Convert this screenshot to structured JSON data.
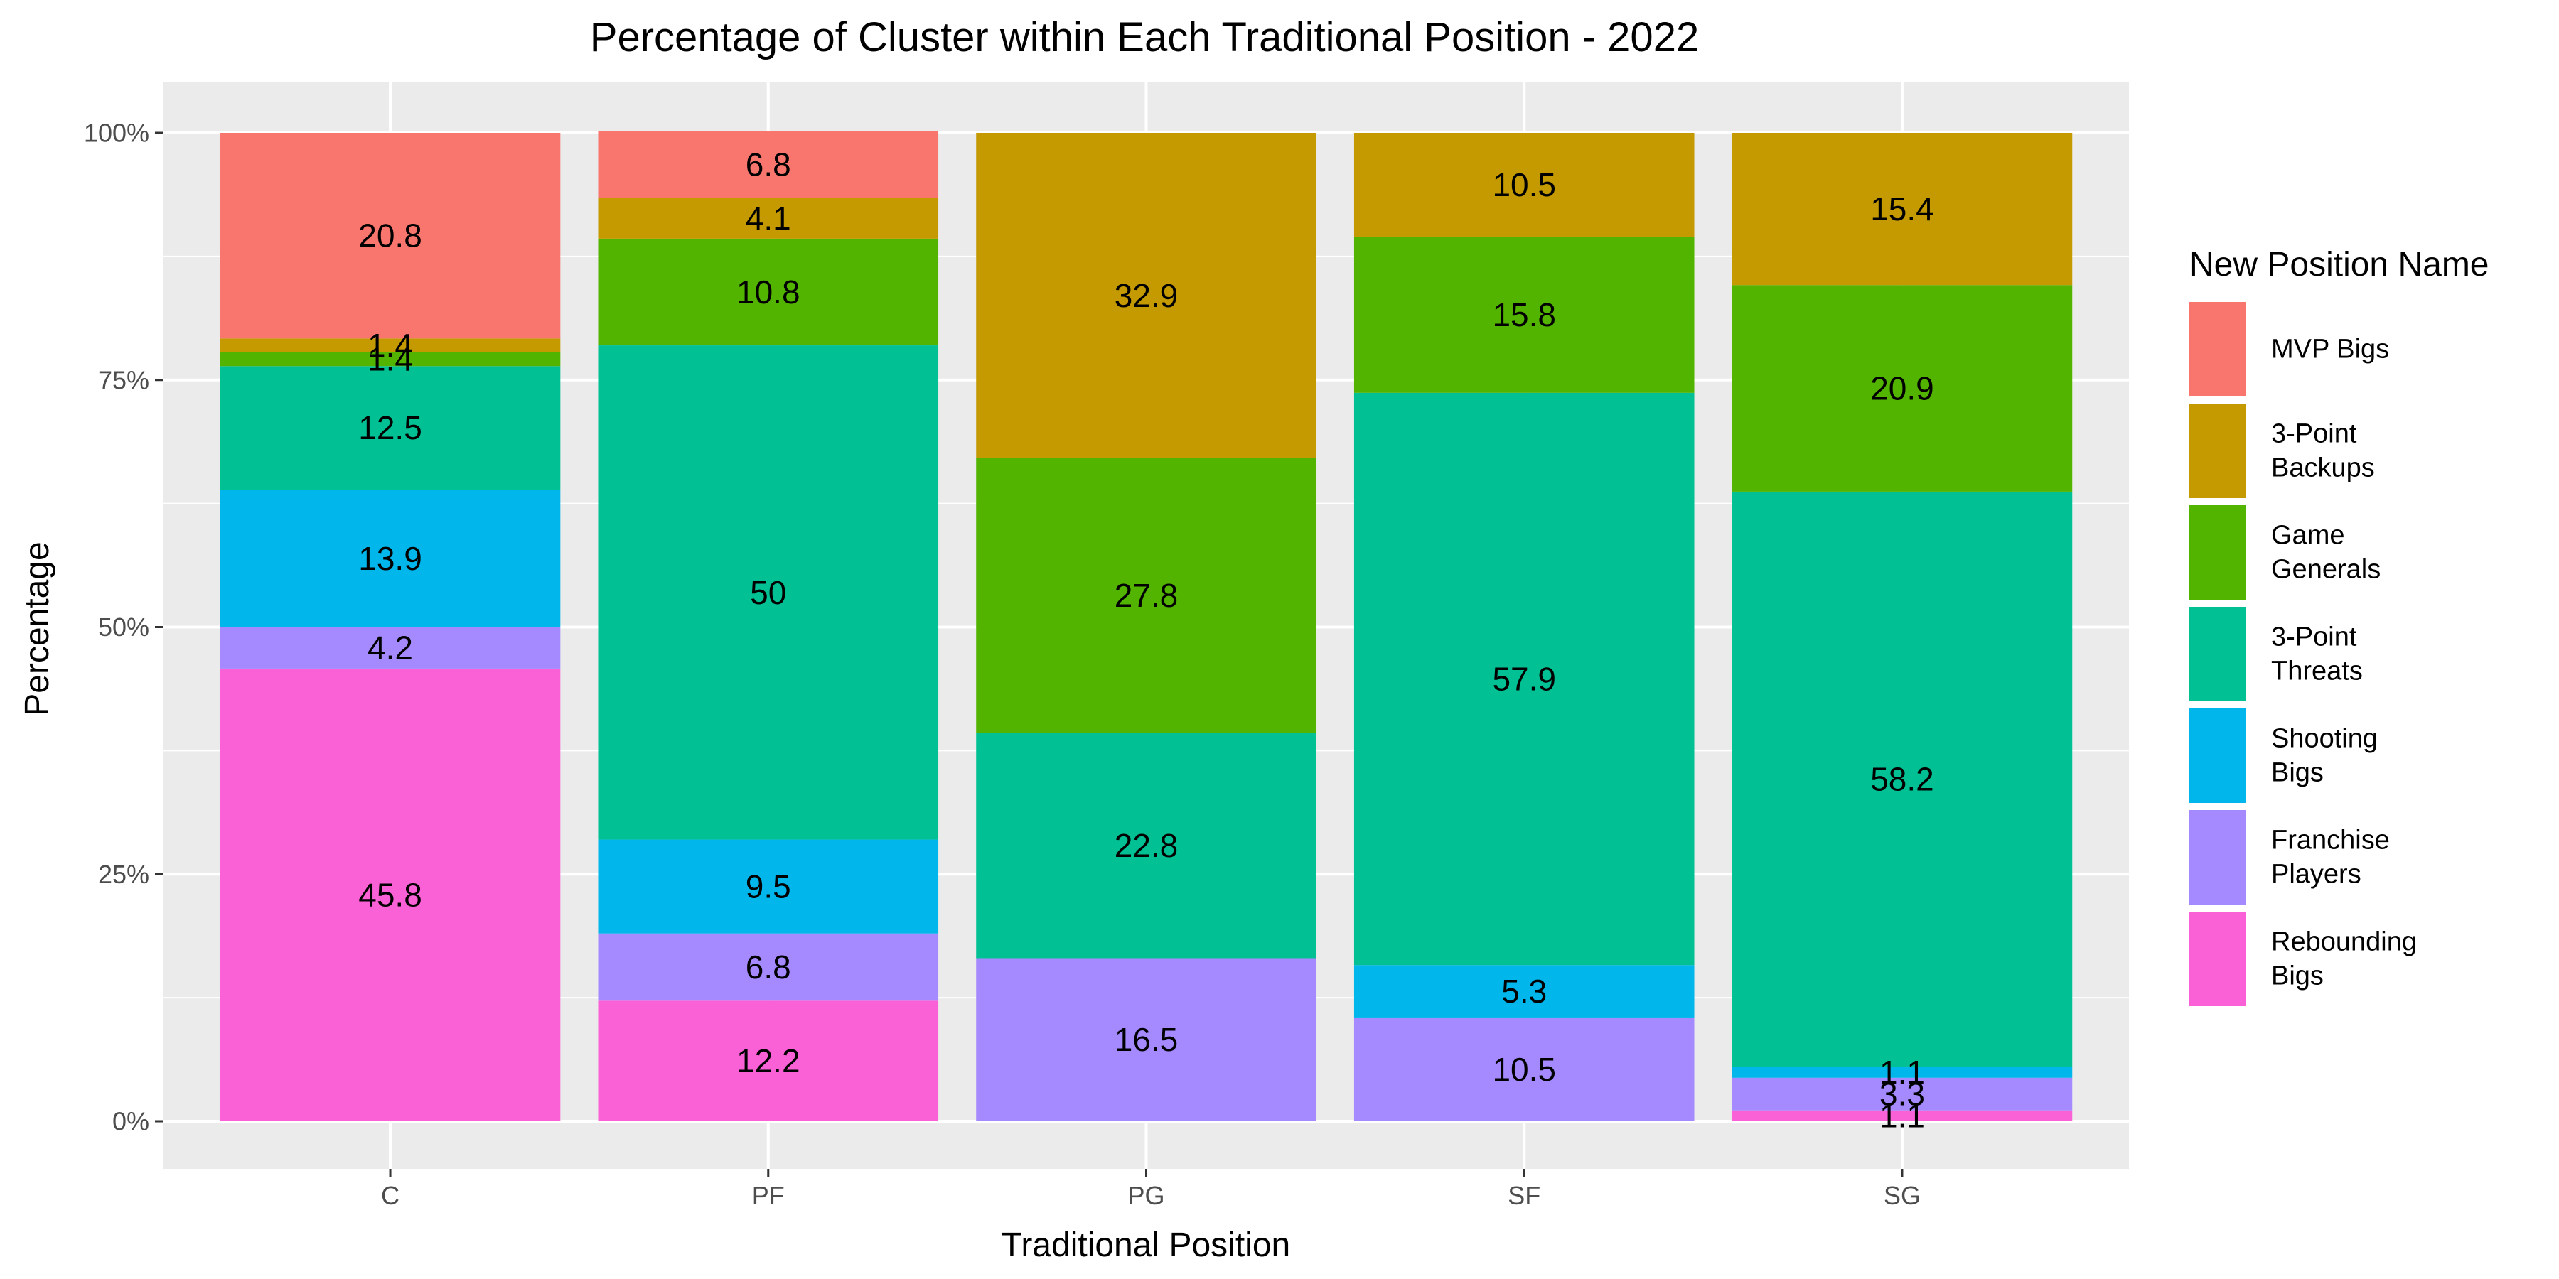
{
  "chart_data": {
    "type": "bar",
    "stacked": true,
    "title": "Percentage of Cluster within Each Traditional Position - 2022",
    "xlabel": "Traditional Position",
    "ylabel": "Percentage",
    "ylim": [
      0,
      100
    ],
    "yticks": [
      "0%",
      "25%",
      "50%",
      "75%",
      "100%"
    ],
    "categories": [
      "C",
      "PF",
      "PG",
      "SF",
      "SG"
    ],
    "grid": true,
    "legend": {
      "title": "New Position Name",
      "placement": "right"
    },
    "series": [
      {
        "name": "MVP Bigs",
        "label_lines": [
          "MVP Bigs"
        ],
        "color": "#F8766D",
        "values": [
          20.8,
          6.8,
          0,
          0,
          0
        ]
      },
      {
        "name": "3-Point Backups",
        "label_lines": [
          "3-Point",
          "Backups"
        ],
        "color": "#C49A00",
        "values": [
          1.4,
          4.1,
          32.9,
          10.5,
          15.4
        ]
      },
      {
        "name": "Game Generals",
        "label_lines": [
          "Game",
          "Generals"
        ],
        "color": "#53B400",
        "values": [
          1.4,
          10.8,
          27.8,
          15.8,
          20.9
        ]
      },
      {
        "name": "3-Point Threats",
        "label_lines": [
          "3-Point",
          "Threats"
        ],
        "color": "#00C094",
        "values": [
          12.5,
          50,
          22.8,
          57.9,
          58.2
        ]
      },
      {
        "name": "Shooting Bigs",
        "label_lines": [
          "Shooting",
          "Bigs"
        ],
        "color": "#00B6EB",
        "values": [
          13.9,
          9.5,
          0,
          5.3,
          1.1
        ]
      },
      {
        "name": "Franchise Players",
        "label_lines": [
          "Franchise",
          "Players"
        ],
        "color": "#A58AFF",
        "values": [
          4.2,
          6.8,
          16.5,
          10.5,
          3.3
        ]
      },
      {
        "name": "Rebounding Bigs",
        "label_lines": [
          "Rebounding",
          "Bigs"
        ],
        "color": "#FB61D7",
        "values": [
          45.8,
          12.2,
          0,
          0,
          1.1
        ]
      }
    ],
    "data_labels": [
      [
        "20.8",
        "6.8",
        "",
        "",
        ""
      ],
      [
        "1.4",
        "4.1",
        "32.9",
        "10.5",
        "15.4"
      ],
      [
        "1.4",
        "10.8",
        "27.8",
        "15.8",
        "20.9"
      ],
      [
        "12.5",
        "50",
        "22.8",
        "57.9",
        "58.2"
      ],
      [
        "13.9",
        "9.5",
        "",
        "5.3",
        "1.1"
      ],
      [
        "4.2",
        "6.8",
        "16.5",
        "10.5",
        "3.3"
      ],
      [
        "45.8",
        "12.2",
        "",
        "",
        "1.1"
      ]
    ]
  }
}
